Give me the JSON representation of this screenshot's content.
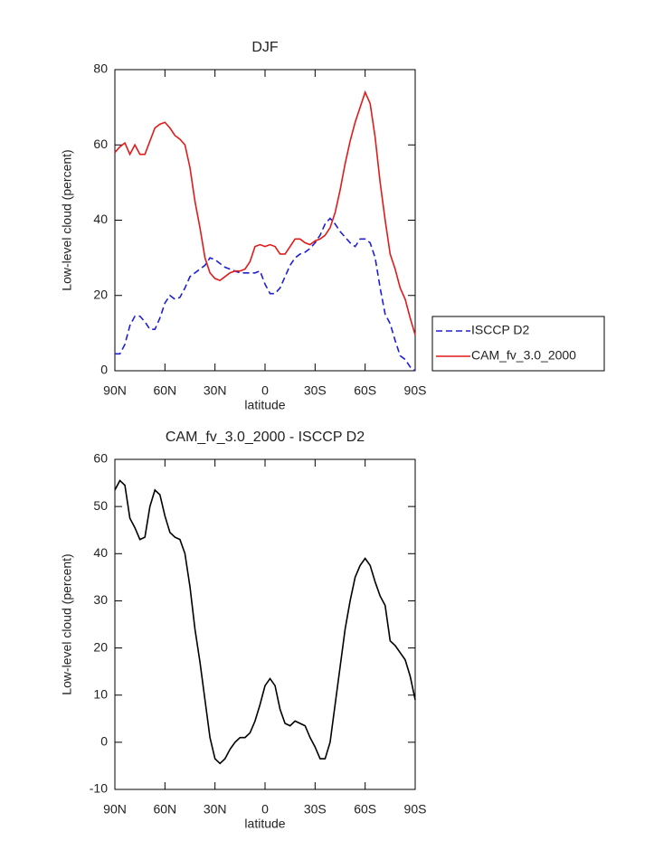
{
  "chart_data": [
    {
      "type": "line",
      "title": "DJF",
      "x_label": "latitude",
      "y_label": "Low-level cloud (percent)",
      "x": [
        90,
        87,
        84,
        81,
        78,
        75,
        72,
        69,
        66,
        63,
        60,
        57,
        54,
        51,
        48,
        45,
        42,
        39,
        36,
        33,
        30,
        27,
        24,
        21,
        18,
        15,
        12,
        9,
        6,
        3,
        0,
        -3,
        -6,
        -9,
        -12,
        -15,
        -18,
        -21,
        -24,
        -27,
        -30,
        -33,
        -36,
        -39,
        -42,
        -45,
        -48,
        -51,
        -54,
        -57,
        -60,
        -63,
        -66,
        -69,
        -72,
        -75,
        -78,
        -81,
        -84,
        -87,
        -90
      ],
      "series": [
        {
          "name": "ISCCP D2",
          "color": "#1f1fd6",
          "dash": "dashed",
          "values": [
            4.5,
            4.5,
            7,
            12,
            14.5,
            14.5,
            13,
            11,
            11,
            14,
            18,
            20,
            19,
            19.5,
            22,
            25,
            26,
            27,
            28,
            30,
            29.5,
            28.5,
            27.5,
            27,
            26.5,
            26,
            26,
            26,
            26,
            26.5,
            23,
            20.5,
            20.5,
            22,
            25,
            28,
            30,
            31,
            31.5,
            32.5,
            34,
            36,
            39,
            40.5,
            39,
            37,
            35.5,
            34,
            33,
            35,
            35,
            34,
            30,
            22,
            15,
            12.5,
            8,
            4,
            3,
            1,
            0
          ]
        },
        {
          "name": "CAM_fv_3.0_2000",
          "color": "#e01b1b",
          "dash": "solid",
          "values": [
            58,
            59.5,
            60.5,
            57.5,
            60,
            57.5,
            57.5,
            61,
            64.5,
            65.5,
            66,
            64.5,
            62.5,
            61.5,
            60,
            54,
            45,
            38,
            30,
            26,
            24.5,
            24,
            25,
            26,
            26.5,
            26.5,
            27,
            29,
            33,
            33.5,
            33,
            33.5,
            33,
            31,
            31,
            33,
            35,
            35,
            34,
            33.5,
            34.5,
            35,
            36,
            38,
            42,
            48,
            55,
            61,
            66,
            70,
            74,
            71,
            62,
            50,
            40,
            31,
            27,
            22,
            19,
            14,
            9.5
          ]
        }
      ],
      "xlim": [
        90,
        -90
      ],
      "xticks": [
        {
          "value": 90,
          "label": "90N"
        },
        {
          "value": 60,
          "label": "60N"
        },
        {
          "value": 30,
          "label": "30N"
        },
        0,
        {
          "value": -30,
          "label": "30S"
        },
        {
          "value": -60,
          "label": "60S"
        },
        {
          "value": -90,
          "label": "90S"
        }
      ],
      "ylim": [
        0,
        80
      ],
      "yticks": [
        0,
        20,
        40,
        60,
        80
      ],
      "legend": "right"
    },
    {
      "type": "line",
      "title": "CAM_fv_3.0_2000 - ISCCP D2",
      "x_label": "latitude",
      "y_label": "Low-level cloud (percent)",
      "x": [
        90,
        87,
        84,
        81,
        78,
        75,
        72,
        69,
        66,
        63,
        60,
        57,
        54,
        51,
        48,
        45,
        42,
        39,
        36,
        33,
        30,
        27,
        24,
        21,
        18,
        15,
        12,
        9,
        6,
        3,
        0,
        -3,
        -6,
        -9,
        -12,
        -15,
        -18,
        -21,
        -24,
        -27,
        -30,
        -33,
        -36,
        -39,
        -42,
        -45,
        -48,
        -51,
        -54,
        -57,
        -60,
        -63,
        -66,
        -69,
        -72,
        -75,
        -78,
        -81,
        -84,
        -87,
        -90
      ],
      "values": [
        53.5,
        55.5,
        54.5,
        47.5,
        45.5,
        43,
        43.5,
        50,
        53.5,
        52.5,
        48,
        44.5,
        43.5,
        43,
        40,
        33,
        24,
        17,
        9,
        1,
        -3.5,
        -4.5,
        -3.5,
        -1.5,
        0,
        1,
        1,
        2,
        4.5,
        8,
        12,
        13.5,
        12,
        7,
        4,
        3.5,
        4.5,
        4,
        3.5,
        1,
        -1,
        -3.5,
        -3.5,
        0,
        8,
        16,
        24,
        30,
        35,
        37.5,
        39,
        37.5,
        34,
        31,
        29,
        21.5,
        20.5,
        19,
        17.5,
        14,
        9
      ],
      "color": "#000000",
      "xlim": [
        90,
        -90
      ],
      "xticks": [
        {
          "value": 90,
          "label": "90N"
        },
        {
          "value": 60,
          "label": "60N"
        },
        {
          "value": 30,
          "label": "30N"
        },
        0,
        {
          "value": -30,
          "label": "30S"
        },
        {
          "value": -60,
          "label": "60S"
        },
        {
          "value": -90,
          "label": "90S"
        }
      ],
      "ylim": [
        -10,
        60
      ],
      "yticks": [
        -10,
        0,
        10,
        20,
        30,
        40,
        50,
        60
      ]
    }
  ]
}
